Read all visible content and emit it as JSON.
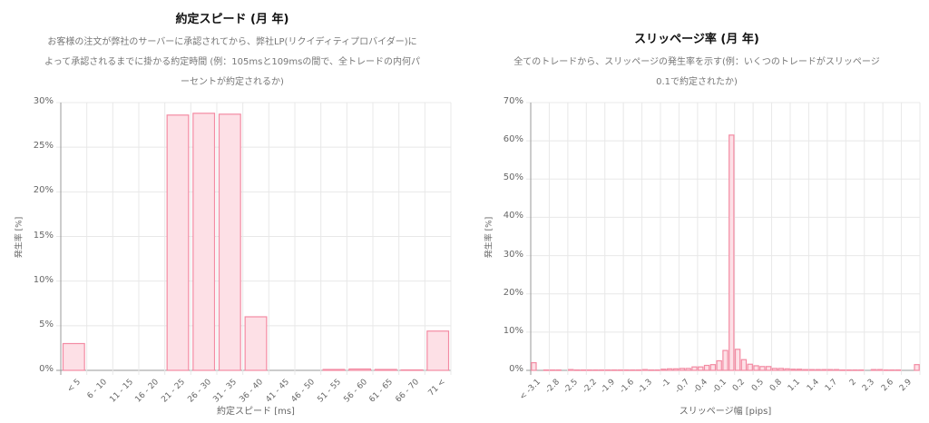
{
  "left": {
    "title": "約定スピード (月 年)",
    "description": "お客様の注文が弊社のサーバーに承認されてから、弊社LP(リクイディティプロバイダー)によって承認されるまでに掛かる約定時間 (例：105msと109msの間で、全トレードの内何パーセントが約定されるか)",
    "desc_lines": [
      "お客様の注文が弊社のサーバーに承認されてから、弊社LP(リクイディティプロバイダー)に",
      "よって承認されるまでに掛かる約定時間 (例：105msと109msの間で、全トレードの内何パ",
      "ーセントが約定されるか)"
    ]
  },
  "right": {
    "title": "スリッページ率 (月 年)",
    "description": "全てのトレードから、スリッページの発生率を示す(例：いくつのトレードがスリッページ0.1で約定されたか)",
    "desc_lines": [
      "全てのトレードから、スリッページの発生率を示す(例：いくつのトレードがスリッページ",
      "0.1で約定されたか)"
    ]
  },
  "colors": {
    "bar_fill": "#fde0e6",
    "bar_stroke": "#f38ba3",
    "grid": "#e8e8e8",
    "axis": "#999999"
  },
  "chart_data": [
    {
      "type": "bar",
      "title": "約定スピード (月 年)",
      "xlabel": "約定スピード [ms]",
      "ylabel": "発生率 [%]",
      "ylim": [
        0,
        30
      ],
      "yticks": [
        "0%",
        "5%",
        "10%",
        "15%",
        "20%",
        "25%",
        "30%"
      ],
      "grid": true,
      "categories": [
        "< 5",
        "6 - 10",
        "11 - 15",
        "16 - 20",
        "21 - 25",
        "26 - 30",
        "31 - 35",
        "36 - 40",
        "41 - 45",
        "46 - 50",
        "51 - 55",
        "56 - 60",
        "61 - 65",
        "66 - 70",
        "71 <"
      ],
      "values": [
        3.0,
        0,
        0,
        0,
        28.6,
        28.8,
        28.7,
        6.0,
        0,
        0,
        0.1,
        0.15,
        0.1,
        0.05,
        4.4
      ]
    },
    {
      "type": "bar",
      "title": "スリッページ率 (月 年)",
      "xlabel": "スリッページ幅 [pips]",
      "ylabel": "発生率 [%]",
      "ylim": [
        0,
        70
      ],
      "yticks": [
        "0%",
        "10%",
        "20%",
        "30%",
        "40%",
        "50%",
        "60%",
        "70%"
      ],
      "grid": true,
      "categories": [
        "< -3.1",
        "-3",
        "-2.9",
        "-2.8",
        "-2.7",
        "-2.6",
        "-2.5",
        "-2.4",
        "-2.3",
        "-2.2",
        "-2.1",
        "-2",
        "-1.9",
        "-1.8",
        "-1.7",
        "-1.6",
        "-1.5",
        "-1.4",
        "-1.3",
        "-1.2",
        "-1.1",
        "-1",
        "-0.9",
        "-0.8",
        "-0.7",
        "-0.6",
        "-0.5",
        "-0.4",
        "-0.3",
        "-0.2",
        "-0.1",
        "0",
        "0.1",
        "0.2",
        "0.3",
        "0.4",
        "0.5",
        "0.6",
        "0.7",
        "0.8",
        "0.9",
        "1",
        "1.1",
        "1.2",
        "1.3",
        "1.4",
        "1.5",
        "1.6",
        "1.7",
        "1.8",
        "1.9",
        "2",
        "2.1",
        "2.2",
        "2.3",
        "2.4",
        "2.5",
        "2.6",
        "2.7",
        "2.8",
        "2.9",
        "3",
        "3.1 <"
      ],
      "visible_tick_labels": [
        "< -3.1",
        "-2.8",
        "-2.5",
        "-2.2",
        "-1.9",
        "-1.6",
        "-1.3",
        "-1",
        "-0.7",
        "-0.4",
        "-0.1",
        "0.2",
        "0.5",
        "0.8",
        "1.1",
        "1.4",
        "1.7",
        "2",
        "2.3",
        "2.6",
        "2.9"
      ],
      "values": [
        2.0,
        0,
        0.1,
        0.1,
        0.1,
        0,
        0.2,
        0.1,
        0.1,
        0.1,
        0.1,
        0.1,
        0.1,
        0.1,
        0.1,
        0.1,
        0.1,
        0.1,
        0.2,
        0.1,
        0.1,
        0.3,
        0.4,
        0.4,
        0.5,
        0.5,
        0.9,
        0.9,
        1.3,
        1.5,
        2.5,
        5.2,
        61.5,
        5.5,
        2.8,
        1.6,
        1.2,
        1.0,
        1.0,
        0.5,
        0.5,
        0.4,
        0.3,
        0.3,
        0.2,
        0.2,
        0.2,
        0.2,
        0.2,
        0.2,
        0.1,
        0.1,
        0.1,
        0.1,
        0,
        0.2,
        0.2,
        0.1,
        0.1,
        0.1,
        0,
        0,
        1.5
      ]
    }
  ]
}
